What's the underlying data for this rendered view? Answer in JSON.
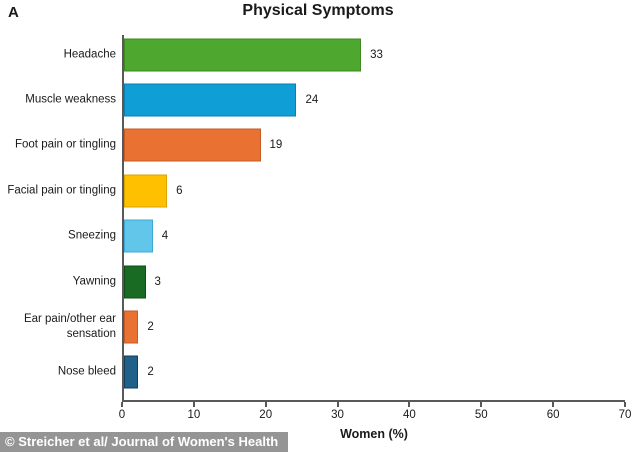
{
  "panel_label": "A",
  "footer": {
    "credit": "© Streicher et al/ Journal of Women's Health",
    "background_color": "#959595",
    "text_color": "#ffffff"
  },
  "chart_data": {
    "type": "bar",
    "orientation": "horizontal",
    "title": "Physical Symptoms",
    "xlabel": "Women (%)",
    "ylabel": "",
    "xlim": [
      0,
      70
    ],
    "xticks": [
      0,
      10,
      20,
      30,
      40,
      50,
      60,
      70
    ],
    "grid": false,
    "legend": "none",
    "categories": [
      "Headache",
      "Muscle weakness",
      "Foot pain or tingling",
      "Facial pain or tingling",
      "Sneezing",
      "Yawning",
      "Ear pain/other ear sensation",
      "Nose bleed"
    ],
    "values": [
      33,
      24,
      19,
      6,
      4,
      3,
      2,
      2
    ],
    "bar_colors": [
      "#4EA72E",
      "#0F9ED5",
      "#E97132",
      "#FFC000",
      "#62C6EA",
      "#196B24",
      "#E97132",
      "#1F6188"
    ],
    "bar_border_colors": [
      "#3C8A20",
      "#0B7FAE",
      "#C55A24",
      "#D9A400",
      "#3BA9D4",
      "#0F4D18",
      "#C55A24",
      "#143D57"
    ],
    "axis_color": "#595959",
    "value_labels_shown": true
  }
}
